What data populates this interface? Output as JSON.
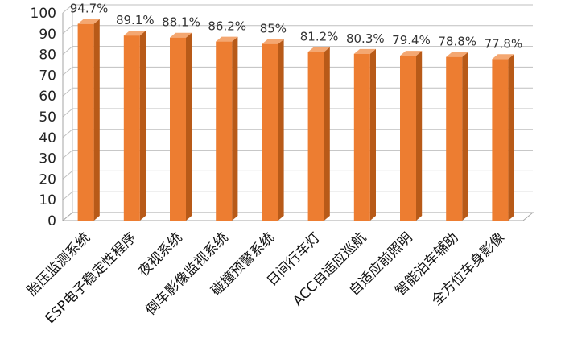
{
  "chart_data": {
    "type": "bar",
    "title": "",
    "xlabel": "",
    "ylabel": "",
    "ylim": [
      0,
      100
    ],
    "yticks": [
      0,
      10,
      20,
      30,
      40,
      50,
      60,
      70,
      80,
      90,
      100
    ],
    "grid": true,
    "legend": "none",
    "style": "3d",
    "categories": [
      "胎压监测系统",
      "ESP电子稳定性程序",
      "夜视系统",
      "倒车影像监视系统",
      "碰撞预警系统",
      "日间行车灯",
      "ACC自适应巡航",
      "自适应前照明",
      "智能泊车辅助",
      "全方位车身影像"
    ],
    "values": [
      94.7,
      89.1,
      88.1,
      86.2,
      85,
      81.2,
      80.3,
      79.4,
      78.8,
      77.8
    ],
    "data_labels": [
      "94.7%",
      "89.1%",
      "88.1%",
      "86.2%",
      "85%",
      "81.2%",
      "80.3%",
      "79.4%",
      "78.8%",
      "77.8%"
    ],
    "colors": {
      "bar_front": "#ED7D31",
      "bar_side": "#B85A18",
      "bar_top": "#F4A771",
      "grid": "#BFBFBF",
      "axis": "#A6A6A6"
    }
  }
}
